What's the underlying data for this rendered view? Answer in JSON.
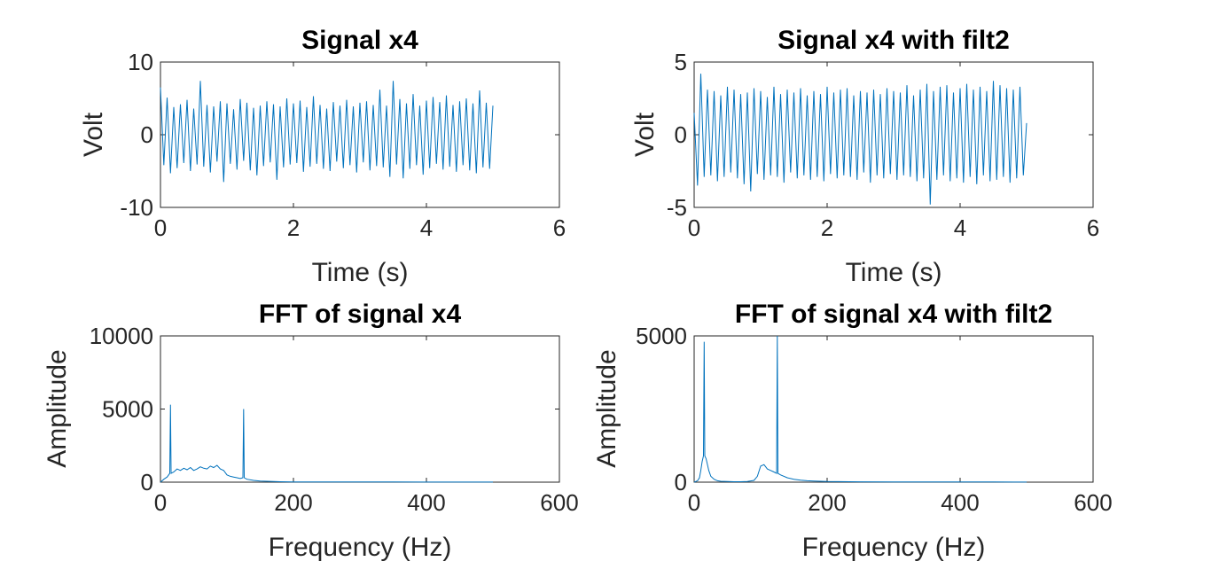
{
  "chart_data": [
    {
      "type": "line",
      "title": "Signal x4",
      "xlabel": "Time (s)",
      "ylabel": "Volt",
      "xlim": [
        0,
        6
      ],
      "ylim": [
        -10,
        10
      ],
      "xticks": [
        0,
        2,
        4,
        6
      ],
      "yticks": [
        -10,
        0,
        10
      ],
      "xtick_labels": [
        "0",
        "2",
        "4",
        "6"
      ],
      "ytick_labels": [
        "-10",
        "0",
        "10"
      ],
      "grid": false,
      "color": "#0072BD",
      "series": [
        {
          "x": [
            0,
            0.05,
            0.1,
            0.15,
            0.2,
            0.25,
            0.3,
            0.35,
            0.4,
            0.45,
            0.5,
            0.55,
            0.6,
            0.65,
            0.7,
            0.75,
            0.8,
            0.85,
            0.9,
            0.95,
            1.0,
            1.05,
            1.1,
            1.15,
            1.2,
            1.25,
            1.3,
            1.35,
            1.4,
            1.45,
            1.5,
            1.55,
            1.6,
            1.65,
            1.7,
            1.75,
            1.8,
            1.85,
            1.9,
            1.95,
            2.0,
            2.05,
            2.1,
            2.15,
            2.2,
            2.25,
            2.3,
            2.35,
            2.4,
            2.45,
            2.5,
            2.55,
            2.6,
            2.65,
            2.7,
            2.75,
            2.8,
            2.85,
            2.9,
            2.95,
            3.0,
            3.05,
            3.1,
            3.15,
            3.2,
            3.25,
            3.3,
            3.35,
            3.4,
            3.45,
            3.5,
            3.55,
            3.6,
            3.65,
            3.7,
            3.75,
            3.8,
            3.85,
            3.9,
            3.95,
            4.0,
            4.05,
            4.1,
            4.15,
            4.2,
            4.25,
            4.3,
            4.35,
            4.4,
            4.45,
            4.5,
            4.55,
            4.6,
            4.65,
            4.7,
            4.75,
            4.8,
            4.85,
            4.9,
            4.95,
            5.0
          ],
          "y": [
            6.5,
            -4.2,
            5.1,
            -5.3,
            3.8,
            -4.6,
            4.2,
            -3.9,
            4.8,
            -5.0,
            3.6,
            -4.1,
            7.4,
            -4.4,
            4.1,
            -5.2,
            3.9,
            -3.7,
            4.6,
            -6.5,
            4.3,
            -4.0,
            3.5,
            -4.8,
            4.9,
            -3.6,
            4.4,
            -4.9,
            3.7,
            -5.6,
            4.0,
            -4.3,
            4.6,
            -3.8,
            4.2,
            -6.2,
            3.9,
            -4.5,
            5.0,
            -4.1,
            4.3,
            -3.9,
            4.7,
            -5.1,
            3.8,
            -4.4,
            5.3,
            -4.0,
            4.1,
            -4.7,
            3.6,
            -5.0,
            4.5,
            -3.7,
            4.0,
            -4.6,
            4.8,
            -4.2,
            3.9,
            -5.2,
            4.4,
            -3.8,
            4.6,
            -4.9,
            4.1,
            -4.3,
            6.2,
            -4.5,
            4.0,
            -5.8,
            7.4,
            -4.1,
            4.9,
            -6.0,
            4.3,
            -4.7,
            5.6,
            -4.2,
            4.0,
            -5.5,
            4.7,
            -4.6,
            5.2,
            -4.0,
            4.5,
            -4.8,
            5.4,
            -4.4,
            4.1,
            -5.1,
            4.6,
            -4.2,
            5.0,
            -4.9,
            4.3,
            -5.3,
            6.1,
            -4.5,
            4.4,
            -4.7,
            4.0
          ]
        }
      ]
    },
    {
      "type": "line",
      "title": "Signal x4 with filt2",
      "xlabel": "Time (s)",
      "ylabel": "Volt",
      "xlim": [
        0,
        6
      ],
      "ylim": [
        -5,
        5
      ],
      "xticks": [
        0,
        2,
        4,
        6
      ],
      "yticks": [
        -5,
        0,
        5
      ],
      "xtick_labels": [
        "0",
        "2",
        "4",
        "6"
      ],
      "ytick_labels": [
        "-5",
        "0",
        "5"
      ],
      "grid": false,
      "color": "#0072BD",
      "series": [
        {
          "x": [
            0,
            0.05,
            0.1,
            0.15,
            0.2,
            0.25,
            0.3,
            0.35,
            0.4,
            0.45,
            0.5,
            0.55,
            0.6,
            0.65,
            0.7,
            0.75,
            0.8,
            0.85,
            0.9,
            0.95,
            1.0,
            1.05,
            1.1,
            1.15,
            1.2,
            1.25,
            1.3,
            1.35,
            1.4,
            1.45,
            1.5,
            1.55,
            1.6,
            1.65,
            1.7,
            1.75,
            1.8,
            1.85,
            1.9,
            1.95,
            2.0,
            2.05,
            2.1,
            2.15,
            2.2,
            2.25,
            2.3,
            2.35,
            2.4,
            2.45,
            2.5,
            2.55,
            2.6,
            2.65,
            2.7,
            2.75,
            2.8,
            2.85,
            2.9,
            2.95,
            3.0,
            3.05,
            3.1,
            3.15,
            3.2,
            3.25,
            3.3,
            3.35,
            3.4,
            3.45,
            3.5,
            3.55,
            3.6,
            3.65,
            3.7,
            3.75,
            3.8,
            3.85,
            3.9,
            3.95,
            4.0,
            4.05,
            4.1,
            4.15,
            4.2,
            4.25,
            4.3,
            4.35,
            4.4,
            4.45,
            4.5,
            4.55,
            4.6,
            4.65,
            4.7,
            4.75,
            4.8,
            4.85,
            4.9,
            4.95,
            5.0
          ],
          "y": [
            1.5,
            -3.5,
            4.2,
            -2.9,
            3.1,
            -2.8,
            3.0,
            -3.2,
            2.7,
            -2.9,
            3.3,
            -2.6,
            3.1,
            -3.0,
            2.8,
            -3.4,
            2.9,
            -3.9,
            3.2,
            -2.7,
            3.0,
            -3.1,
            2.6,
            -2.8,
            3.3,
            -2.9,
            2.8,
            -3.3,
            3.1,
            -2.6,
            2.9,
            -3.0,
            3.2,
            -2.8,
            2.7,
            -3.1,
            3.0,
            -2.9,
            2.8,
            -3.2,
            3.3,
            -2.7,
            2.9,
            -3.0,
            3.1,
            -2.8,
            3.2,
            -2.9,
            2.7,
            -3.1,
            3.0,
            -2.6,
            2.9,
            -3.3,
            3.1,
            -2.8,
            2.8,
            -3.0,
            3.2,
            -2.7,
            3.0,
            -3.1,
            2.9,
            -2.8,
            3.4,
            -2.9,
            2.7,
            -3.2,
            3.1,
            -3.0,
            3.5,
            -4.8,
            3.0,
            -3.1,
            3.3,
            -2.8,
            3.4,
            -3.2,
            2.9,
            -3.0,
            3.2,
            -3.3,
            3.5,
            -2.9,
            3.1,
            -3.4,
            3.3,
            -2.8,
            3.0,
            -3.2,
            3.7,
            -3.1,
            3.4,
            -2.9,
            3.2,
            -3.3,
            3.1,
            -3.0,
            3.3,
            -2.8,
            0.8
          ]
        }
      ]
    },
    {
      "type": "line",
      "title": "FFT of signal x4",
      "xlabel": "Frequency (Hz)",
      "ylabel": "Amplitude",
      "xlim": [
        0,
        600
      ],
      "ylim": [
        0,
        10000
      ],
      "xticks": [
        0,
        200,
        400,
        600
      ],
      "yticks": [
        0,
        5000,
        10000
      ],
      "xtick_labels": [
        "0",
        "200",
        "400",
        "600"
      ],
      "ytick_labels": [
        "0",
        "5000",
        "10000"
      ],
      "grid": false,
      "color": "#0072BD",
      "series": [
        {
          "x": [
            0,
            5,
            10,
            14,
            15,
            16,
            20,
            25,
            30,
            35,
            40,
            45,
            50,
            55,
            60,
            65,
            70,
            75,
            80,
            85,
            90,
            95,
            100,
            105,
            110,
            115,
            120,
            124,
            125,
            126,
            130,
            140,
            150,
            160,
            170,
            180,
            190,
            200,
            250,
            300,
            350,
            400,
            450,
            500
          ],
          "y": [
            0,
            200,
            350,
            600,
            5300,
            600,
            700,
            900,
            800,
            950,
            850,
            1000,
            800,
            900,
            1050,
            950,
            900,
            1100,
            1000,
            1150,
            900,
            800,
            500,
            400,
            350,
            300,
            250,
            300,
            5000,
            300,
            200,
            120,
            80,
            60,
            40,
            30,
            25,
            20,
            15,
            12,
            10,
            8,
            6,
            5
          ]
        }
      ]
    },
    {
      "type": "line",
      "title": "FFT of signal x4 with filt2",
      "xlabel": "Frequency (Hz)",
      "ylabel": "Amplitude",
      "xlim": [
        0,
        600
      ],
      "ylim": [
        0,
        5000
      ],
      "xticks": [
        0,
        200,
        400,
        600
      ],
      "yticks": [
        0,
        5000
      ],
      "xtick_labels": [
        "0",
        "200",
        "400",
        "600"
      ],
      "ytick_labels": [
        "0",
        "5000"
      ],
      "grid": false,
      "color": "#0072BD",
      "series": [
        {
          "x": [
            0,
            5,
            8,
            10,
            12,
            14,
            15,
            16,
            18,
            20,
            22,
            25,
            30,
            35,
            40,
            50,
            60,
            70,
            80,
            90,
            95,
            100,
            105,
            110,
            115,
            120,
            124,
            125,
            126,
            130,
            140,
            150,
            160,
            170,
            180,
            200,
            250,
            300,
            350,
            400,
            450,
            500
          ],
          "y": [
            0,
            50,
            150,
            400,
            700,
            900,
            4800,
            900,
            800,
            600,
            400,
            200,
            100,
            50,
            30,
            20,
            15,
            15,
            20,
            60,
            200,
            550,
            600,
            450,
            400,
            350,
            300,
            5000,
            300,
            250,
            150,
            100,
            70,
            50,
            35,
            20,
            12,
            10,
            8,
            6,
            5,
            4
          ]
        }
      ]
    }
  ]
}
